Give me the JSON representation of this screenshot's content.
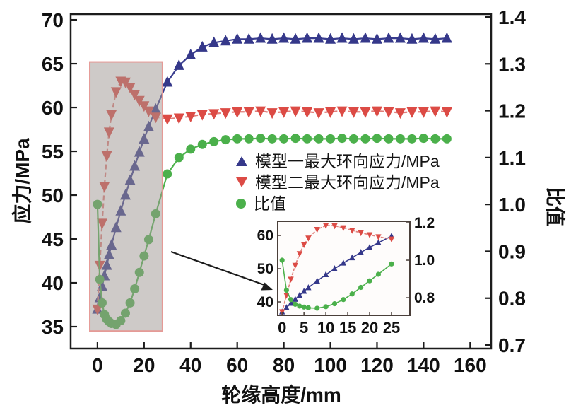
{
  "chart_data": {
    "type": "line",
    "title": "",
    "xlabel": "轮缘高度/mm",
    "ylabel_left": "应力/MPa",
    "ylabel_right": "比值",
    "x_ticks": [
      0,
      20,
      40,
      60,
      80,
      100,
      120,
      140,
      160
    ],
    "y_left_ticks": [
      35,
      40,
      45,
      50,
      55,
      60,
      65,
      70
    ],
    "y_right_ticks": [
      0.7,
      0.8,
      0.9,
      1.0,
      1.1,
      1.2,
      1.3,
      1.4
    ],
    "x_range": [
      -11.5,
      169.0
    ],
    "y_left_range": [
      32.5,
      70.65
    ],
    "y_right_range": [
      0.6925,
      1.406
    ],
    "grid": false,
    "legend_position": "inside-right-middle",
    "x": [
      0,
      1,
      2,
      3,
      4,
      5,
      6,
      8,
      10,
      12,
      14,
      16,
      18,
      20,
      22,
      25,
      30,
      35,
      40,
      45,
      50,
      55,
      60,
      65,
      70,
      75,
      80,
      85,
      90,
      95,
      100,
      105,
      110,
      115,
      120,
      125,
      130,
      135,
      140,
      145,
      150
    ],
    "series": [
      {
        "name": "模型一最大环向应力/MPa",
        "axis": "left",
        "marker": "triangle-up",
        "color": "#35388a",
        "line_color": "#383c8e",
        "line_dash": "",
        "values": [
          37.0,
          38.3,
          39.6,
          40.8,
          42.0,
          43.2,
          44.3,
          46.3,
          48.2,
          50.0,
          51.7,
          53.3,
          54.9,
          56.4,
          57.8,
          59.8,
          62.9,
          64.8,
          66.0,
          66.9,
          67.4,
          67.6,
          67.8,
          67.8,
          67.9,
          67.8,
          67.9,
          67.8,
          67.9,
          67.9,
          67.8,
          67.9,
          67.8,
          67.9,
          67.8,
          67.9,
          67.9,
          67.8,
          67.9,
          67.8,
          67.9
        ]
      },
      {
        "name": "模型二最大环向应力/MPa",
        "axis": "left",
        "marker": "triangle-down",
        "color": "#dc4b45",
        "line_color": "#e07f7b",
        "line_dash": "7 4",
        "values": [
          37.0,
          42.0,
          46.8,
          51.0,
          54.5,
          57.2,
          59.2,
          61.8,
          63.0,
          62.9,
          62.3,
          61.5,
          60.8,
          60.2,
          59.6,
          58.9,
          58.7,
          58.8,
          59.0,
          59.2,
          59.3,
          59.4,
          59.5,
          59.5,
          59.6,
          59.4,
          59.5,
          59.6,
          59.5,
          59.4,
          59.5,
          59.6,
          59.5,
          59.5,
          59.6,
          59.5,
          59.4,
          59.5,
          59.5,
          59.6,
          59.5
        ]
      },
      {
        "name": "比值",
        "axis": "right",
        "marker": "circle",
        "color": "#4bb04b",
        "line_color": "#4db24d",
        "line_dash": "",
        "values": [
          1.0,
          0.84,
          0.79,
          0.765,
          0.755,
          0.75,
          0.746,
          0.744,
          0.752,
          0.768,
          0.79,
          0.82,
          0.855,
          0.89,
          0.925,
          0.98,
          1.065,
          1.1,
          1.118,
          1.128,
          1.134,
          1.138,
          1.14,
          1.14,
          1.141,
          1.14,
          1.14,
          1.141,
          1.14,
          1.14,
          1.14,
          1.141,
          1.14,
          1.14,
          1.141,
          1.14,
          1.14,
          1.14,
          1.141,
          1.14,
          1.14
        ]
      }
    ],
    "highlight_region": {
      "x_min": -3.3,
      "x_max": 27.9,
      "stress_min": 34.5,
      "stress_max": 65.2,
      "fill": "rgba(158,150,146,0.5)",
      "border_color": "#e59a96"
    },
    "inset": {
      "x_max_shown": 26,
      "x_ticks": [
        0,
        5,
        10,
        15,
        20,
        25
      ],
      "y_left_ticks": [
        40,
        50,
        60
      ],
      "y_right_ticks": [
        0.8,
        1.0,
        1.2
      ],
      "x_range": [
        -1.0,
        29.2
      ],
      "y_left_range": [
        35.96,
        64.26
      ],
      "y_right_range": [
        0.706,
        1.2075
      ]
    }
  },
  "legend": {
    "items": [
      {
        "label": "模型一最大环向应力/MPa"
      },
      {
        "label": "模型二最大环向应力/MPa"
      },
      {
        "label": "比值"
      }
    ]
  }
}
